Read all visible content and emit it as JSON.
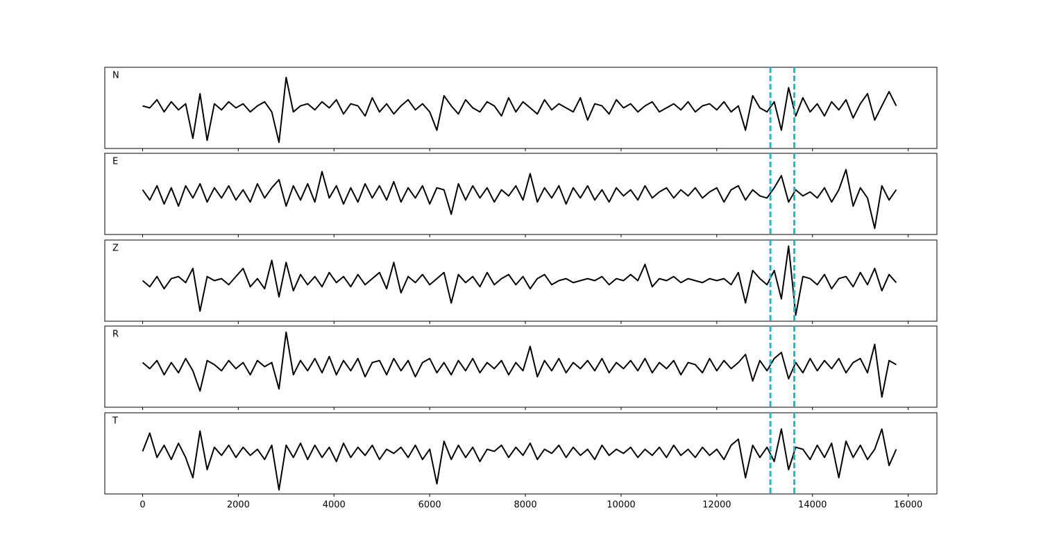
{
  "chart_data": {
    "type": "line",
    "x": [
      0,
      150,
      300,
      450,
      600,
      750,
      900,
      1050,
      1200,
      1350,
      1500,
      1650,
      1800,
      1950,
      2100,
      2250,
      2400,
      2550,
      2700,
      2850,
      3000,
      3150,
      3300,
      3450,
      3600,
      3750,
      3900,
      4050,
      4200,
      4350,
      4500,
      4650,
      4800,
      4950,
      5100,
      5250,
      5400,
      5550,
      5700,
      5850,
      6000,
      6150,
      6300,
      6450,
      6600,
      6750,
      6900,
      7050,
      7200,
      7350,
      7500,
      7650,
      7800,
      7950,
      8100,
      8250,
      8400,
      8550,
      8700,
      8850,
      9000,
      9150,
      9300,
      9450,
      9600,
      9750,
      9900,
      10050,
      10200,
      10350,
      10500,
      10650,
      10800,
      10950,
      11100,
      11250,
      11400,
      11550,
      11700,
      11850,
      12000,
      12150,
      12300,
      12450,
      12600,
      12750,
      12900,
      13050,
      13200,
      13350,
      13500,
      13650,
      13800,
      13950,
      14100,
      14250,
      14400,
      14550,
      14700,
      14850,
      15000,
      15150,
      15300,
      15450,
      15600,
      15750
    ],
    "xlim": [
      -790,
      16600
    ],
    "xticks": [
      0,
      2000,
      4000,
      6000,
      8000,
      10000,
      12000,
      14000,
      16000
    ],
    "ylim": [
      -1,
      1
    ],
    "vlines": [
      13120,
      13620
    ],
    "vline_color": "#17becf",
    "series": [
      {
        "name": "N",
        "color": "#000000",
        "values": [
          0.05,
          0.0,
          0.2,
          -0.1,
          0.15,
          -0.05,
          0.1,
          -0.75,
          0.35,
          -0.8,
          0.1,
          -0.05,
          0.15,
          0.0,
          0.1,
          -0.1,
          0.05,
          0.15,
          -0.1,
          -0.85,
          0.75,
          -0.1,
          0.05,
          0.1,
          -0.05,
          0.15,
          0.0,
          0.2,
          -0.15,
          0.1,
          0.05,
          -0.2,
          0.25,
          -0.1,
          0.1,
          -0.15,
          0.05,
          0.2,
          -0.05,
          0.1,
          -0.1,
          -0.55,
          0.3,
          0.05,
          -0.15,
          0.2,
          0.0,
          -0.1,
          0.15,
          0.05,
          -0.2,
          0.25,
          -0.1,
          0.15,
          0.0,
          -0.15,
          0.2,
          -0.05,
          0.1,
          0.0,
          -0.1,
          0.25,
          -0.3,
          0.1,
          0.05,
          -0.15,
          0.2,
          0.0,
          0.1,
          -0.1,
          0.05,
          0.15,
          -0.1,
          0.0,
          0.1,
          -0.05,
          0.15,
          -0.1,
          0.05,
          0.1,
          -0.05,
          0.15,
          -0.1,
          0.05,
          -0.55,
          0.3,
          0.0,
          -0.1,
          0.15,
          -0.55,
          0.5,
          -0.2,
          0.25,
          -0.1,
          0.1,
          -0.2,
          0.15,
          -0.05,
          0.2,
          -0.25,
          0.1,
          0.35,
          -0.3,
          0.05,
          0.4,
          0.05
        ]
      },
      {
        "name": "E",
        "color": "#000000",
        "values": [
          0.1,
          -0.15,
          0.2,
          -0.25,
          0.15,
          -0.3,
          0.2,
          -0.1,
          0.25,
          -0.2,
          0.15,
          -0.1,
          0.2,
          -0.15,
          0.1,
          -0.2,
          0.25,
          -0.1,
          0.15,
          0.35,
          -0.3,
          0.2,
          -0.15,
          0.25,
          -0.2,
          0.55,
          -0.1,
          0.2,
          -0.25,
          0.15,
          -0.2,
          0.25,
          -0.1,
          0.2,
          -0.15,
          0.3,
          -0.2,
          0.15,
          -0.1,
          0.2,
          -0.25,
          0.15,
          0.1,
          -0.5,
          0.25,
          -0.15,
          0.2,
          -0.1,
          0.15,
          -0.2,
          0.1,
          -0.05,
          0.2,
          -0.15,
          0.5,
          -0.2,
          0.15,
          -0.1,
          0.2,
          -0.25,
          0.15,
          -0.1,
          0.2,
          -0.15,
          0.1,
          -0.2,
          0.15,
          -0.05,
          0.1,
          -0.15,
          0.2,
          -0.1,
          0.05,
          0.15,
          -0.1,
          0.1,
          -0.05,
          0.15,
          -0.1,
          0.05,
          0.15,
          -0.2,
          0.1,
          0.2,
          -0.15,
          0.1,
          -0.05,
          -0.1,
          0.15,
          0.45,
          -0.2,
          0.1,
          -0.05,
          0.05,
          -0.1,
          0.15,
          -0.2,
          0.1,
          0.6,
          -0.3,
          0.15,
          -0.1,
          -0.85,
          0.2,
          -0.15,
          0.1
        ]
      },
      {
        "name": "Z",
        "color": "#000000",
        "values": [
          0.0,
          -0.15,
          0.1,
          -0.2,
          0.05,
          0.1,
          -0.05,
          0.3,
          -0.75,
          0.1,
          0.0,
          0.05,
          -0.1,
          0.1,
          0.3,
          -0.15,
          0.05,
          -0.2,
          0.5,
          -0.4,
          0.45,
          -0.25,
          0.15,
          -0.1,
          0.1,
          -0.15,
          0.2,
          -0.05,
          0.1,
          -0.15,
          0.15,
          -0.1,
          0.05,
          0.2,
          -0.2,
          0.45,
          -0.3,
          0.1,
          -0.05,
          0.15,
          -0.1,
          0.05,
          0.2,
          -0.55,
          0.15,
          -0.05,
          0.1,
          -0.15,
          0.2,
          -0.1,
          0.05,
          0.15,
          -0.1,
          0.1,
          -0.2,
          0.05,
          0.15,
          -0.1,
          0.0,
          0.05,
          -0.05,
          0.0,
          0.05,
          0.0,
          0.1,
          -0.1,
          0.05,
          0.0,
          0.15,
          0.0,
          0.4,
          -0.15,
          0.05,
          0.0,
          0.1,
          -0.05,
          0.05,
          0.0,
          -0.05,
          0.05,
          0.0,
          0.05,
          -0.1,
          0.2,
          -0.55,
          0.25,
          0.05,
          -0.1,
          0.25,
          -0.45,
          0.85,
          -0.85,
          0.1,
          0.05,
          -0.1,
          0.15,
          -0.2,
          0.05,
          0.1,
          -0.15,
          0.2,
          -0.1,
          0.3,
          -0.25,
          0.15,
          -0.05
        ]
      },
      {
        "name": "R",
        "color": "#000000",
        "values": [
          0.1,
          -0.05,
          0.15,
          -0.2,
          0.1,
          -0.15,
          0.2,
          -0.1,
          -0.6,
          0.15,
          0.05,
          -0.1,
          0.15,
          -0.05,
          0.1,
          -0.2,
          0.15,
          0.0,
          0.1,
          -0.55,
          0.85,
          -0.2,
          0.15,
          -0.1,
          0.2,
          -0.15,
          0.25,
          -0.2,
          0.15,
          -0.1,
          0.2,
          -0.25,
          0.1,
          0.15,
          -0.2,
          0.2,
          -0.1,
          0.15,
          -0.25,
          0.1,
          0.2,
          -0.15,
          0.1,
          -0.2,
          0.15,
          -0.1,
          0.2,
          -0.15,
          0.1,
          -0.05,
          0.15,
          -0.2,
          0.1,
          -0.1,
          0.5,
          -0.25,
          0.15,
          -0.1,
          0.2,
          -0.15,
          0.1,
          -0.05,
          0.15,
          -0.1,
          0.2,
          -0.15,
          0.1,
          -0.05,
          0.15,
          -0.1,
          0.2,
          -0.15,
          0.1,
          -0.05,
          0.15,
          -0.2,
          0.1,
          0.05,
          -0.15,
          0.2,
          -0.1,
          0.15,
          -0.05,
          0.1,
          0.3,
          -0.35,
          0.15,
          -0.1,
          0.2,
          0.35,
          -0.3,
          0.1,
          -0.15,
          0.2,
          -0.1,
          0.15,
          -0.05,
          0.2,
          -0.15,
          0.1,
          0.2,
          -0.15,
          0.55,
          -0.75,
          0.15,
          0.05
        ]
      },
      {
        "name": "T",
        "color": "#000000",
        "values": [
          0.05,
          0.5,
          -0.1,
          0.2,
          -0.15,
          0.25,
          -0.1,
          -0.6,
          0.55,
          -0.4,
          0.15,
          -0.05,
          0.2,
          -0.1,
          0.15,
          -0.05,
          0.1,
          -0.15,
          0.2,
          -0.9,
          0.2,
          -0.1,
          0.25,
          -0.15,
          0.2,
          -0.1,
          0.15,
          -0.2,
          0.25,
          -0.1,
          0.15,
          -0.05,
          0.2,
          -0.15,
          0.1,
          0.0,
          0.15,
          -0.1,
          0.2,
          -0.15,
          0.1,
          -0.75,
          0.3,
          -0.15,
          0.2,
          -0.1,
          0.15,
          -0.2,
          0.1,
          0.05,
          0.2,
          -0.1,
          0.15,
          -0.05,
          0.25,
          -0.15,
          0.1,
          0.0,
          0.2,
          -0.1,
          0.15,
          -0.05,
          0.1,
          -0.15,
          0.2,
          -0.05,
          0.1,
          0.0,
          0.15,
          -0.1,
          0.1,
          -0.05,
          0.15,
          -0.1,
          0.2,
          -0.05,
          0.1,
          -0.1,
          0.15,
          -0.05,
          0.1,
          -0.15,
          0.2,
          0.35,
          -0.6,
          0.2,
          -0.1,
          0.15,
          -0.2,
          0.6,
          -0.4,
          0.15,
          0.1,
          -0.15,
          0.2,
          -0.1,
          0.25,
          -0.6,
          0.3,
          -0.1,
          0.2,
          -0.15,
          0.1,
          0.6,
          -0.3,
          0.1
        ]
      }
    ]
  }
}
